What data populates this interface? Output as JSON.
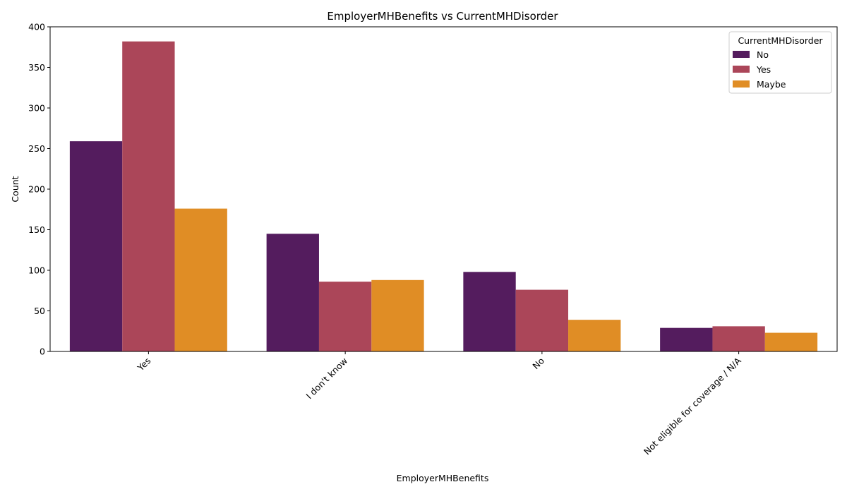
{
  "chart_data": {
    "type": "bar",
    "title": "EmployerMHBenefits vs CurrentMHDisorder",
    "xlabel": "EmployerMHBenefits",
    "ylabel": "Count",
    "categories": [
      "Yes",
      "I don't know",
      "No",
      "Not eligible for coverage / N/A"
    ],
    "ylim": [
      0,
      400
    ],
    "yticks": [
      0,
      50,
      100,
      150,
      200,
      250,
      300,
      350,
      400
    ],
    "grid": false,
    "legend": {
      "title": "CurrentMHDisorder",
      "placement": "top-right"
    },
    "series": [
      {
        "name": "No",
        "color": "#541c5e",
        "values": [
          259,
          145,
          98,
          29
        ]
      },
      {
        "name": "Yes",
        "color": "#ab4659",
        "values": [
          382,
          86,
          76,
          31
        ]
      },
      {
        "name": "Maybe",
        "color": "#e08d25",
        "values": [
          176,
          88,
          39,
          23
        ]
      }
    ]
  }
}
